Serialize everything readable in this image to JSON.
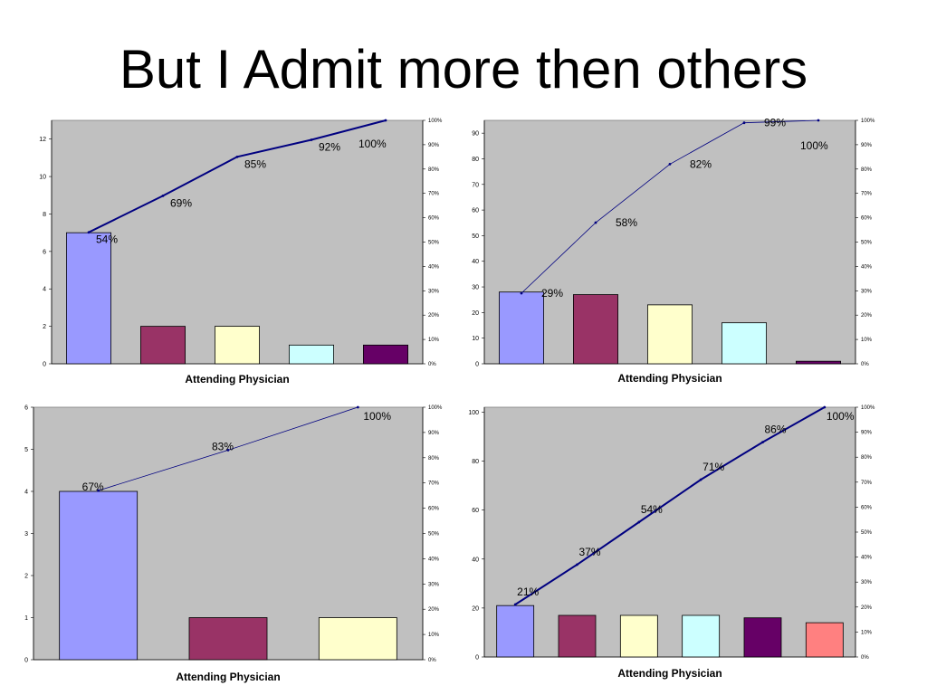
{
  "title": "But I Admit more then others",
  "colors": {
    "plot_bg": "#c0c0c0",
    "line": "#000080",
    "bars": [
      "#9999ff",
      "#993366",
      "#ffffcc",
      "#ccffff",
      "#660066",
      "#ff8080"
    ]
  },
  "chart_data": [
    {
      "type": "bar",
      "xlabel": "Attending Physician",
      "categories": [
        "",
        "",
        "",
        "",
        ""
      ],
      "values": [
        7,
        2,
        2,
        1,
        1
      ],
      "ylim": [
        0,
        13
      ],
      "yticks": [
        "0",
        "2",
        "4",
        "6",
        "8",
        "10",
        "12"
      ],
      "cumulative_percent": [
        54,
        69,
        85,
        92,
        100
      ],
      "cumulative_labels": [
        "54%",
        "69%",
        "85%",
        "92%",
        "100%"
      ],
      "y2ticks": [
        "0%",
        "10%",
        "20%",
        "30%",
        "40%",
        "50%",
        "60%",
        "70%",
        "80%",
        "90%",
        "100%"
      ]
    },
    {
      "type": "bar",
      "xlabel": "Attending Physician",
      "categories": [
        "",
        "",
        "",
        "",
        ""
      ],
      "values": [
        28,
        27,
        23,
        16,
        1
      ],
      "ylim": [
        0,
        95
      ],
      "yticks": [
        "0",
        "10",
        "20",
        "30",
        "40",
        "50",
        "60",
        "70",
        "80",
        "90"
      ],
      "cumulative_percent": [
        29,
        58,
        82,
        99,
        100
      ],
      "cumulative_labels": [
        "29%",
        "58%",
        "82%",
        "99%",
        "100%"
      ],
      "y2ticks": [
        "0%",
        "10%",
        "20%",
        "30%",
        "40%",
        "50%",
        "60%",
        "70%",
        "80%",
        "90%",
        "100%"
      ]
    },
    {
      "type": "bar",
      "xlabel": "Attending Physician",
      "categories": [
        "",
        "",
        ""
      ],
      "values": [
        4,
        1,
        1
      ],
      "ylim": [
        0,
        6
      ],
      "yticks": [
        "0",
        "1",
        "2",
        "3",
        "4",
        "5",
        "6"
      ],
      "cumulative_percent": [
        67,
        83,
        100
      ],
      "cumulative_labels": [
        "67%",
        "83%",
        "100%"
      ],
      "y2ticks": [
        "0%",
        "10%",
        "20%",
        "30%",
        "40%",
        "50%",
        "60%",
        "70%",
        "80%",
        "90%",
        "100%"
      ]
    },
    {
      "type": "bar",
      "xlabel": "Attending Physician",
      "categories": [
        "",
        "",
        "",
        "",
        "",
        ""
      ],
      "values": [
        21,
        17,
        17,
        17,
        16,
        14
      ],
      "ylim": [
        0,
        102
      ],
      "yticks": [
        "0",
        "20",
        "40",
        "60",
        "80",
        "100"
      ],
      "cumulative_percent": [
        21,
        37,
        54,
        71,
        86,
        100
      ],
      "cumulative_labels": [
        "21%",
        "37%",
        "54%",
        "71%",
        "86%",
        "100%"
      ],
      "y2ticks": [
        "0%",
        "10%",
        "20%",
        "30%",
        "40%",
        "50%",
        "60%",
        "70%",
        "80%",
        "90%",
        "100%"
      ]
    }
  ]
}
